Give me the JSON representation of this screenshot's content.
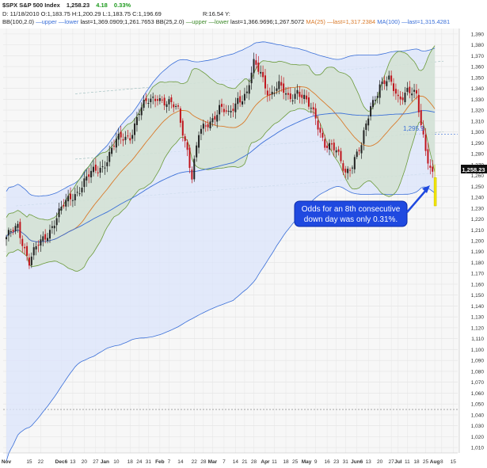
{
  "header": {
    "ticker": "$SPX S&P 500 Index",
    "last": "1,258.23",
    "change": "4.18",
    "change_pct": "0.33%",
    "ohlc": "D: 11/18/2010 O:1,183.75 H:1,200.29 L:1,183.75 C:1,196.69",
    "range": "R:16.54 Y:",
    "bb100_label": "BB(100,2.0)",
    "bb100_upper": "upper",
    "bb100_lower": "lower",
    "bb100_last": "last=1,369.0909;1,261.7653",
    "bb25_label": "BB(25,2.0)",
    "bb25_upper": "upper",
    "bb25_lower": "lower",
    "bb25_last": "last=1,366.9696;1,267.5072",
    "ma25_label": "MA(25)",
    "ma25_last": "last=1,317.2384",
    "ma100_label": "MA(100)",
    "ma100_last": "last=1,315.4281"
  },
  "annotation": {
    "text_line1": "Odds for an 8th consecutive",
    "text_line2": "down day was only 0.31%."
  },
  "level_label": "1,295.9",
  "colors": {
    "up": "#222222",
    "down": "#c0141c",
    "last_bar": "#f2e600",
    "bb100": "#3a6fd8",
    "bb25": "#6b9a3a",
    "ma25": "#d97a2a",
    "ma100": "#3a6fd8",
    "callout": "#1f49e0"
  },
  "chart_data": {
    "type": "candlestick",
    "title": "$SPX S&P 500 Index",
    "ylim": [
      1000,
      1400
    ],
    "y_ticks": [
      "1,390",
      "1,380",
      "1,370",
      "1,360",
      "1,350",
      "1,340",
      "1,330",
      "1,320",
      "1,310",
      "1,300",
      "1,290",
      "1,280",
      "1,270",
      "1,260",
      "1,250",
      "1,240",
      "1,230",
      "1,220",
      "1,210",
      "1,200",
      "1,190",
      "1,180",
      "1,170",
      "1,160",
      "1,150",
      "1,140",
      "1,130",
      "1,120",
      "1,110",
      "1,100",
      "1,090",
      "1,080",
      "1,070",
      "1,060",
      "1,050",
      "1,040",
      "1,030",
      "1,020",
      "1,010"
    ],
    "x_ticks": [
      "Nov",
      "15",
      "22",
      "Dec6",
      "13",
      "20",
      "27",
      "Jan",
      "10",
      "18",
      "24",
      "31",
      "Feb",
      "7",
      "14",
      "22",
      "28",
      "Mar",
      "7",
      "14",
      "21",
      "28",
      "Apr",
      "11",
      "18",
      "25",
      "May",
      "9",
      "16",
      "23",
      "31",
      "Jun6",
      "13",
      "20",
      "27",
      "Jul",
      "11",
      "18",
      "25",
      "Aug",
      "8",
      "15"
    ],
    "last_price": "1,258.23",
    "anchors": [
      [
        0,
        1200
      ],
      [
        5,
        1215
      ],
      [
        10,
        1180
      ],
      [
        14,
        1195
      ],
      [
        20,
        1215
      ],
      [
        28,
        1240
      ],
      [
        35,
        1256
      ],
      [
        42,
        1270
      ],
      [
        48,
        1290
      ],
      [
        54,
        1298
      ],
      [
        58,
        1318
      ],
      [
        62,
        1327
      ],
      [
        66,
        1335
      ],
      [
        70,
        1325
      ],
      [
        75,
        1320
      ],
      [
        79,
        1285
      ],
      [
        81,
        1258
      ],
      [
        84,
        1296
      ],
      [
        88,
        1309
      ],
      [
        93,
        1322
      ],
      [
        97,
        1313
      ],
      [
        101,
        1332
      ],
      [
        105,
        1335
      ],
      [
        108,
        1360
      ],
      [
        111,
        1355
      ],
      [
        115,
        1335
      ],
      [
        119,
        1340
      ],
      [
        123,
        1332
      ],
      [
        127,
        1339
      ],
      [
        131,
        1325
      ],
      [
        135,
        1314
      ],
      [
        139,
        1290
      ],
      [
        144,
        1280
      ],
      [
        148,
        1265
      ],
      [
        151,
        1272
      ],
      [
        155,
        1285
      ],
      [
        159,
        1325
      ],
      [
        163,
        1344
      ],
      [
        167,
        1345
      ],
      [
        171,
        1332
      ],
      [
        175,
        1340
      ],
      [
        179,
        1330
      ],
      [
        181,
        1305
      ],
      [
        183,
        1285
      ],
      [
        185,
        1270
      ],
      [
        187,
        1258
      ]
    ],
    "annotations": [
      "Odds for an 8th consecutive down day was only 0.31%."
    ]
  }
}
